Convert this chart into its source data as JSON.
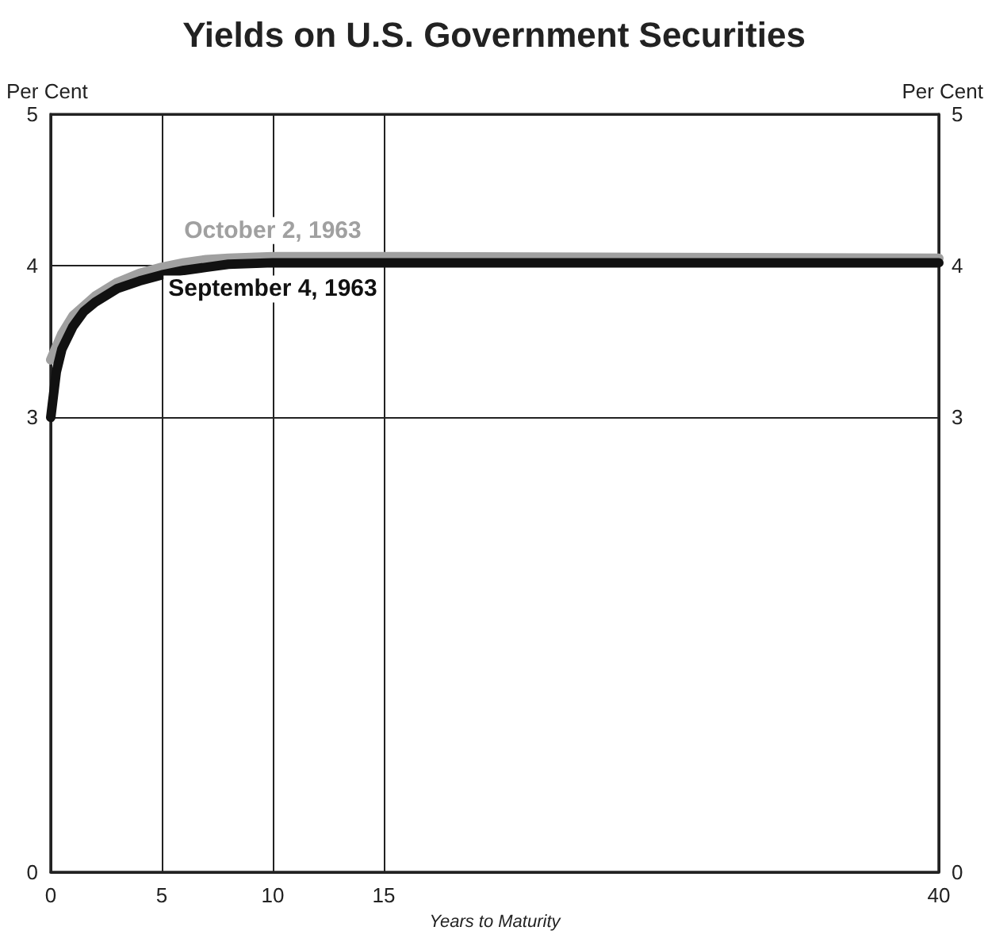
{
  "chart_data": {
    "type": "line",
    "title": "Yields on U.S. Government Securities",
    "xlabel": "Years to Maturity",
    "ylabel": "Per Cent",
    "y2label": "Per Cent",
    "xlim": [
      0,
      40
    ],
    "xticks": [
      0,
      5,
      10,
      15,
      40
    ],
    "ylim": [
      0,
      5
    ],
    "yticks": [
      0,
      3,
      4,
      5
    ],
    "y2lim": [
      0,
      5
    ],
    "y2ticks": [
      0,
      3,
      4,
      5
    ],
    "grid": true,
    "legend": false,
    "marker": "none",
    "line_style": "solid",
    "series": [
      {
        "name": "October 2, 1963",
        "color": "#a0a0a0",
        "x": [
          0,
          0.5,
          1,
          2,
          3,
          4,
          5,
          6,
          7,
          8,
          10,
          15,
          40
        ],
        "values": [
          3.38,
          3.55,
          3.67,
          3.8,
          3.89,
          3.95,
          3.99,
          4.02,
          4.04,
          4.05,
          4.06,
          4.06,
          4.05
        ]
      },
      {
        "name": "September 4, 1963",
        "color": "#111111",
        "x": [
          0,
          0.25,
          0.5,
          1,
          1.5,
          2,
          3,
          4,
          5,
          6,
          7,
          8,
          10,
          15,
          40
        ],
        "values": [
          3.0,
          3.3,
          3.45,
          3.6,
          3.7,
          3.76,
          3.85,
          3.9,
          3.94,
          3.97,
          3.99,
          4.01,
          4.02,
          4.02,
          4.02
        ]
      }
    ]
  }
}
